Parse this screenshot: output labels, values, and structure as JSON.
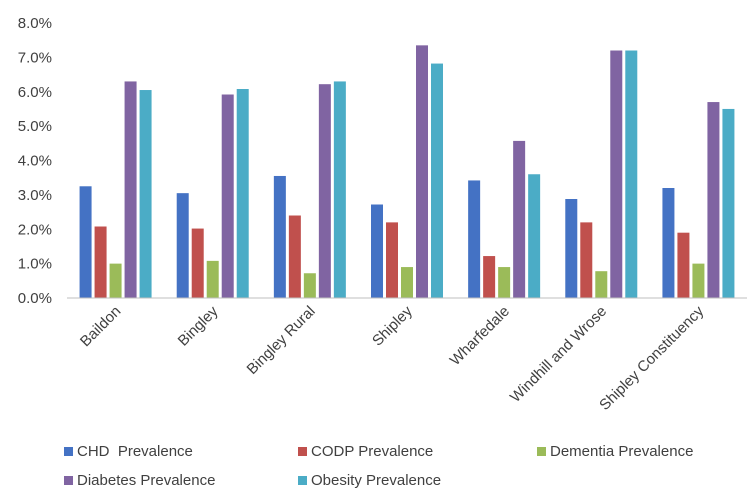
{
  "chart_data": {
    "type": "bar",
    "categories": [
      "Baildon",
      "Bingley",
      "Bingley Rural",
      "Shipley",
      "Wharfedale",
      "Windhill and Wrose",
      "Shipley Constituency"
    ],
    "series": [
      {
        "name": "CHD  Prevalence",
        "color": "#4472c4",
        "values": [
          3.25,
          3.05,
          3.55,
          2.72,
          3.42,
          2.88,
          3.2
        ]
      },
      {
        "name": "CODP Prevalence",
        "color": "#c0504d",
        "values": [
          2.08,
          2.02,
          2.4,
          2.2,
          1.22,
          2.2,
          1.9
        ]
      },
      {
        "name": "Dementia Prevalence",
        "color": "#9bbb59",
        "values": [
          1.0,
          1.08,
          0.72,
          0.9,
          0.9,
          0.78,
          1.0
        ]
      },
      {
        "name": "Diabetes Prevalence",
        "color": "#8064a2",
        "values": [
          6.3,
          5.92,
          6.22,
          7.35,
          4.57,
          7.2,
          5.7
        ]
      },
      {
        "name": "Obesity Prevalence",
        "color": "#4bacc6",
        "values": [
          6.05,
          6.08,
          6.3,
          6.82,
          3.6,
          7.2,
          5.5
        ]
      }
    ],
    "yticks": [
      "0.0%",
      "1.0%",
      "2.0%",
      "3.0%",
      "4.0%",
      "5.0%",
      "6.0%",
      "7.0%",
      "8.0%"
    ],
    "ylim": [
      0,
      8
    ],
    "title": "",
    "xlabel": "",
    "ylabel": "",
    "grid": false,
    "legend_position": "bottom"
  }
}
